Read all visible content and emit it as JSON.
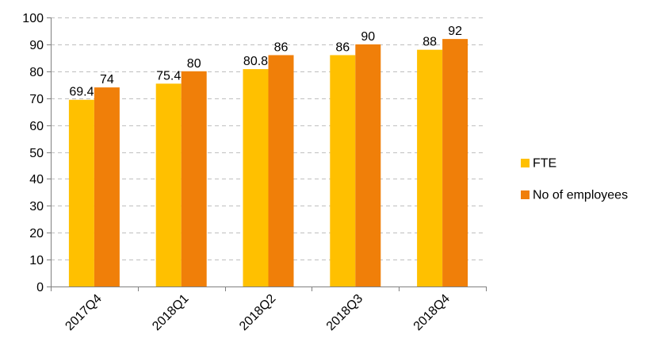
{
  "chart_data": {
    "type": "bar",
    "title": "",
    "xlabel": "",
    "ylabel": "",
    "categories": [
      "2017Q4",
      "2018Q1",
      "2018Q2",
      "2018Q3",
      "2018Q4"
    ],
    "series": [
      {
        "name": "FTE",
        "values": [
          69.4,
          75.4,
          80.8,
          86,
          88
        ],
        "color": "#FFC000",
        "labels": [
          "69.4",
          "75.4",
          "80.8",
          "86",
          "88"
        ]
      },
      {
        "name": "No of employees",
        "values": [
          74,
          80,
          86,
          90,
          92
        ],
        "color": "#F07F09",
        "labels": [
          "74",
          "80",
          "86",
          "90",
          "92"
        ]
      }
    ],
    "ylim": [
      0,
      100
    ],
    "yticks": [
      0,
      10,
      20,
      30,
      40,
      50,
      60,
      70,
      80,
      90,
      100
    ],
    "grid": true,
    "legend": "right",
    "axis_color": "#808080",
    "grid_color": "#BFBFBF"
  }
}
